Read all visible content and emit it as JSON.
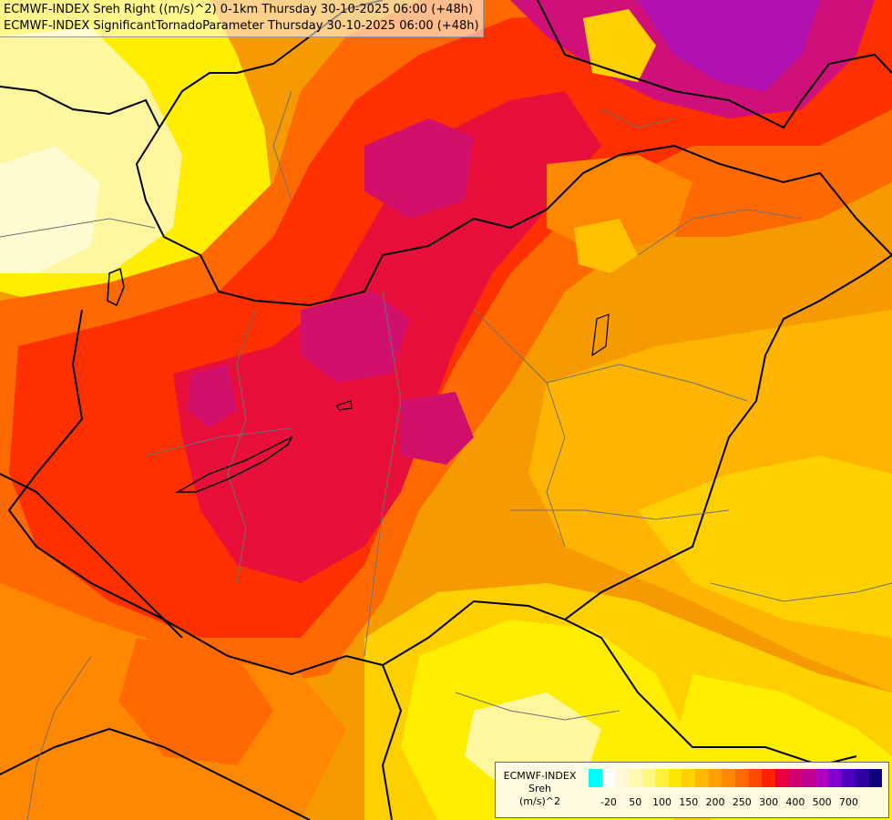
{
  "titles": {
    "line1": "ECMWF-INDEX Sreh Right ((m/s)^2) 0-1km Thursday 30-10-2025 06:00 (+48h)",
    "line2": "ECMWF-INDEX SignificantTornadoParameter Thursday 30-10-2025 06:00 (+48h)"
  },
  "legend": {
    "label_line1": "ECMWF-INDEX",
    "label_line2": "Sreh",
    "label_line3": "(m/s)^2",
    "colors": [
      "#00ffff",
      "#ffffff",
      "#fff8d8",
      "#fff8b0",
      "#fff680",
      "#fff040",
      "#ffe600",
      "#ffd000",
      "#ffb800",
      "#ffa000",
      "#ff8800",
      "#ff6a00",
      "#ff4a00",
      "#ff2000",
      "#e80040",
      "#d00070",
      "#c00090",
      "#b000c0",
      "#8000d0",
      "#5000c0",
      "#3000a0",
      "#100080"
    ],
    "ticks": [
      {
        "label": "-20",
        "index": 1
      },
      {
        "label": "50",
        "index": 3
      },
      {
        "label": "100",
        "index": 5
      },
      {
        "label": "150",
        "index": 7
      },
      {
        "label": "200",
        "index": 9
      },
      {
        "label": "250",
        "index": 11
      },
      {
        "label": "300",
        "index": 13
      },
      {
        "label": "400",
        "index": 15
      },
      {
        "label": "500",
        "index": 17
      },
      {
        "label": "700",
        "index": 19
      }
    ]
  },
  "field_colors": {
    "yellow_light": "#fff8b0",
    "yellow": "#ffee00",
    "gold": "#ffc800",
    "orange": "#ffa000",
    "dark_orange": "#ff7a00",
    "red_orange": "#ff4a00",
    "red": "#f01a10",
    "crimson": "#e0104a",
    "magenta": "#d0107a",
    "purple": "#b010b0"
  }
}
